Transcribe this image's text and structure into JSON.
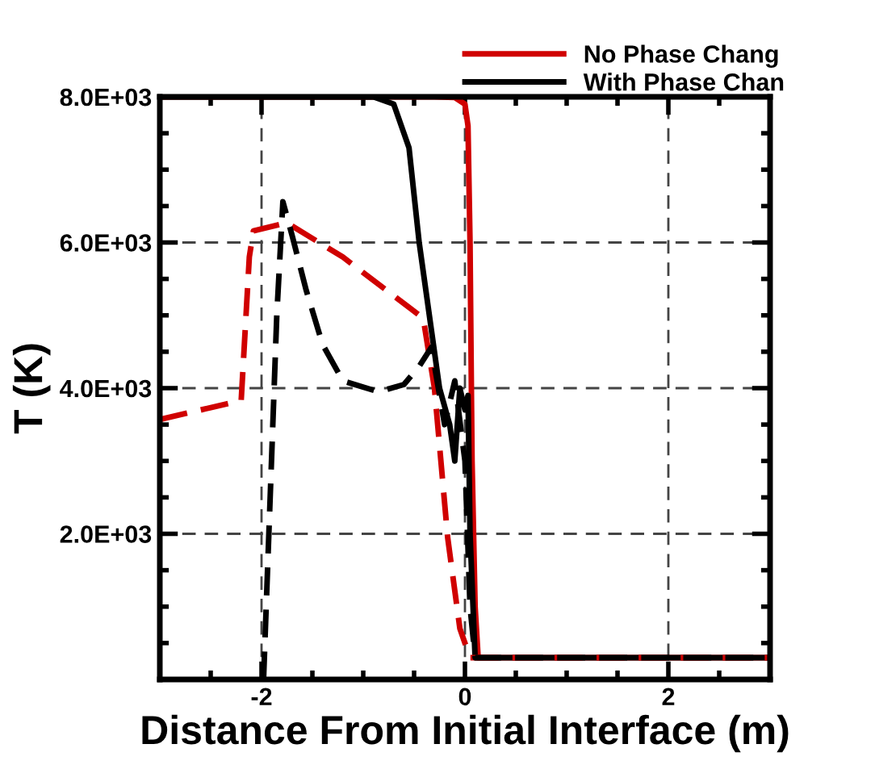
{
  "chart_data": {
    "type": "line",
    "xlabel": "Distance From Initial Interface (m)",
    "ylabel": "T (K)",
    "xlim": [
      -3,
      3
    ],
    "ylim": [
      0,
      8000
    ],
    "xticks": [
      -2,
      0,
      2
    ],
    "yticks": [
      {
        "value": 2000,
        "label": "2.0E+03"
      },
      {
        "value": 4000,
        "label": "4.0E+03"
      },
      {
        "value": 6000,
        "label": "6.0E+03"
      },
      {
        "value": 8000,
        "label": "8.0E+03"
      }
    ],
    "grid": true,
    "legend": "top right",
    "series": [
      {
        "name": "No Phase Chang",
        "color": "#d00000",
        "line_style": "solid",
        "x": [
          -3,
          -0.3,
          -0.1,
          0,
          0.03,
          0.05,
          0.07,
          0.1,
          0.13,
          3
        ],
        "values": [
          8000,
          8000,
          7990,
          7900,
          7600,
          6000,
          3000,
          1000,
          300,
          300
        ]
      },
      {
        "name": "With Phase Chan",
        "color": "#000000",
        "line_style": "solid",
        "x": [
          -3,
          -0.9,
          -0.7,
          -0.55,
          -0.45,
          -0.35,
          -0.25,
          -0.15,
          -0.1,
          -0.05,
          0,
          0.03,
          0.05,
          0.1,
          3
        ],
        "values": [
          8000,
          8000,
          7900,
          7300,
          6000,
          5000,
          4000,
          3500,
          3000,
          4000,
          3700,
          3900,
          2000,
          300,
          300
        ]
      },
      {
        "color": "#d00000",
        "line_style": "dashed",
        "x": [
          -3,
          -2.2,
          -2.12,
          -2.08,
          -1.75,
          -1.2,
          -0.41,
          -0.3,
          -0.17,
          -0.05,
          0.05,
          3
        ],
        "values": [
          3570,
          3830,
          5800,
          6160,
          6270,
          5800,
          4960,
          4000,
          1950,
          700,
          300,
          300
        ]
      },
      {
        "color": "#000000",
        "line_style": "dashed",
        "x": [
          -1.98,
          -1.85,
          -1.79,
          -1.7,
          -1.56,
          -1.4,
          -1.2,
          -0.85,
          -0.6,
          -0.45,
          -0.33,
          -0.2,
          -0.1,
          0,
          0.05,
          0.1,
          3
        ],
        "values": [
          0,
          5000,
          6560,
          6100,
          5340,
          4600,
          4100,
          3950,
          4050,
          4300,
          4560,
          3500,
          4100,
          3000,
          1000,
          300,
          300
        ]
      }
    ]
  }
}
